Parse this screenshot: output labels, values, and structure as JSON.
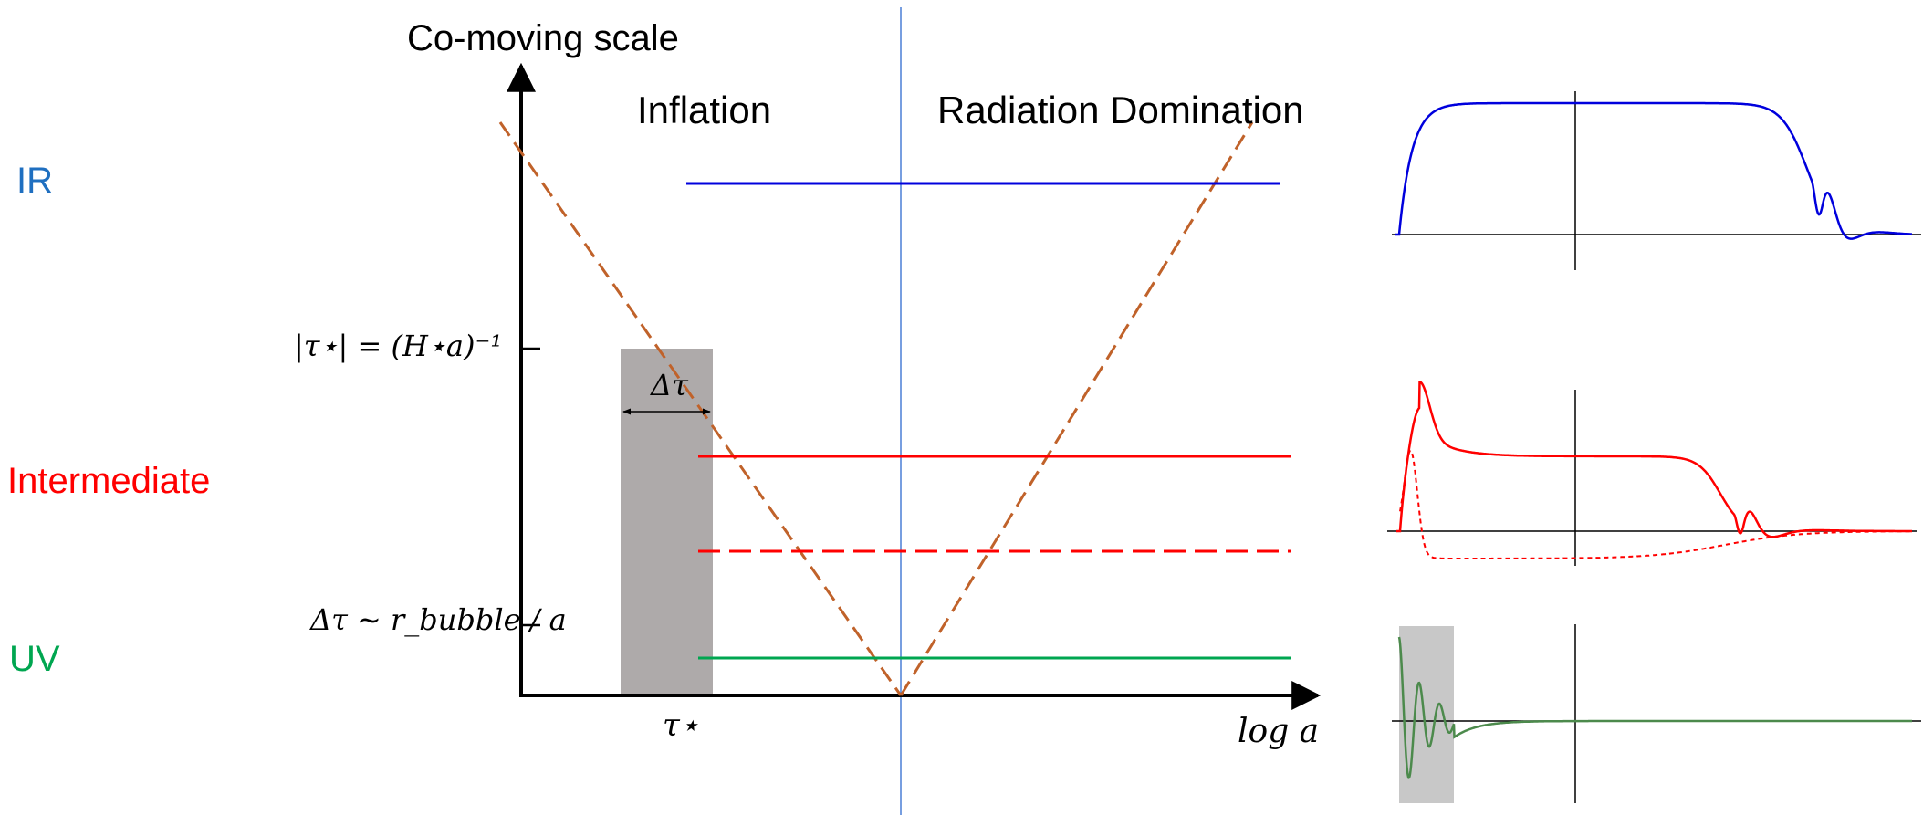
{
  "titles": {
    "y_axis": "Co-moving scale",
    "era_inflation": "Inflation",
    "era_radiation": "Radiation Domination"
  },
  "scale_labels": {
    "ir": "IR",
    "intermediate": "Intermediate",
    "uv": "UV"
  },
  "math_labels": {
    "tick_horizon": "|τ⋆| = (H⋆a)⁻¹",
    "tick_bubble": "Δτ ∼ r_bubble / a",
    "bubble_width": "Δτ",
    "tau_star": "τ⋆",
    "x_axis": "log a"
  },
  "colors": {
    "ir": "#1f6fc0",
    "intermediate": "#ff0000",
    "uv": "#00a650",
    "horizon": "#c0622a",
    "divider": "#4a7fd6",
    "bubble": "#aeaaaa",
    "ir_plot": "#0000dd",
    "uv_plot": "#4c8a4c"
  }
}
